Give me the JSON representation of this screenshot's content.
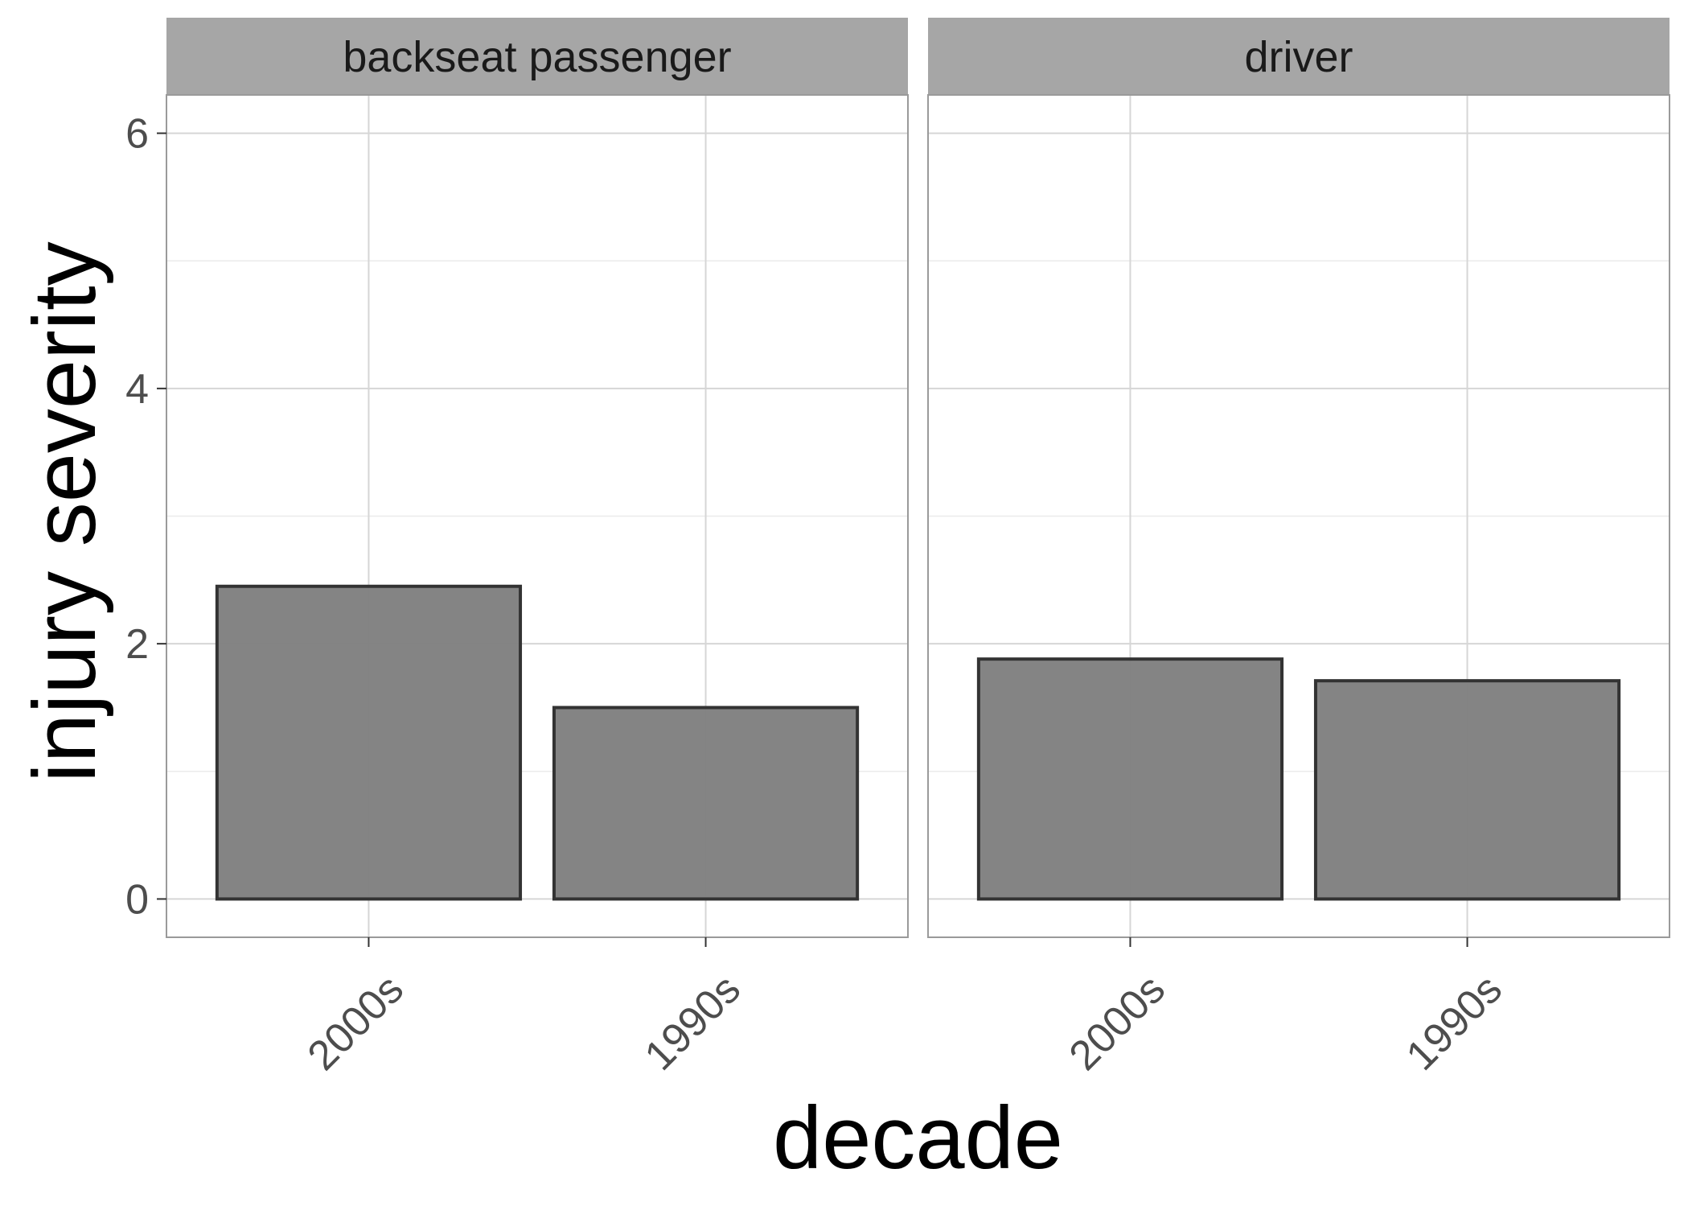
{
  "chart_data": {
    "type": "bar",
    "xlabel": "decade",
    "ylabel": "injury severity",
    "ylim": [
      -0.3,
      6.3
    ],
    "yticks": [
      0,
      2,
      4,
      6
    ],
    "grid": true,
    "facets": [
      {
        "label": "backseat passenger",
        "categories": [
          "2000s",
          "1990s"
        ],
        "values": [
          2.45,
          1.5
        ]
      },
      {
        "label": "driver",
        "categories": [
          "2000s",
          "1990s"
        ],
        "values": [
          1.88,
          1.71
        ]
      }
    ],
    "colors": {
      "bar_fill": "#808080",
      "bar_stroke": "#333333",
      "strip_fill": "#a6a6a6",
      "grid_major": "#d6d6d6",
      "grid_minor": "#ebebeb",
      "panel_border": "#9a9a9a"
    }
  }
}
